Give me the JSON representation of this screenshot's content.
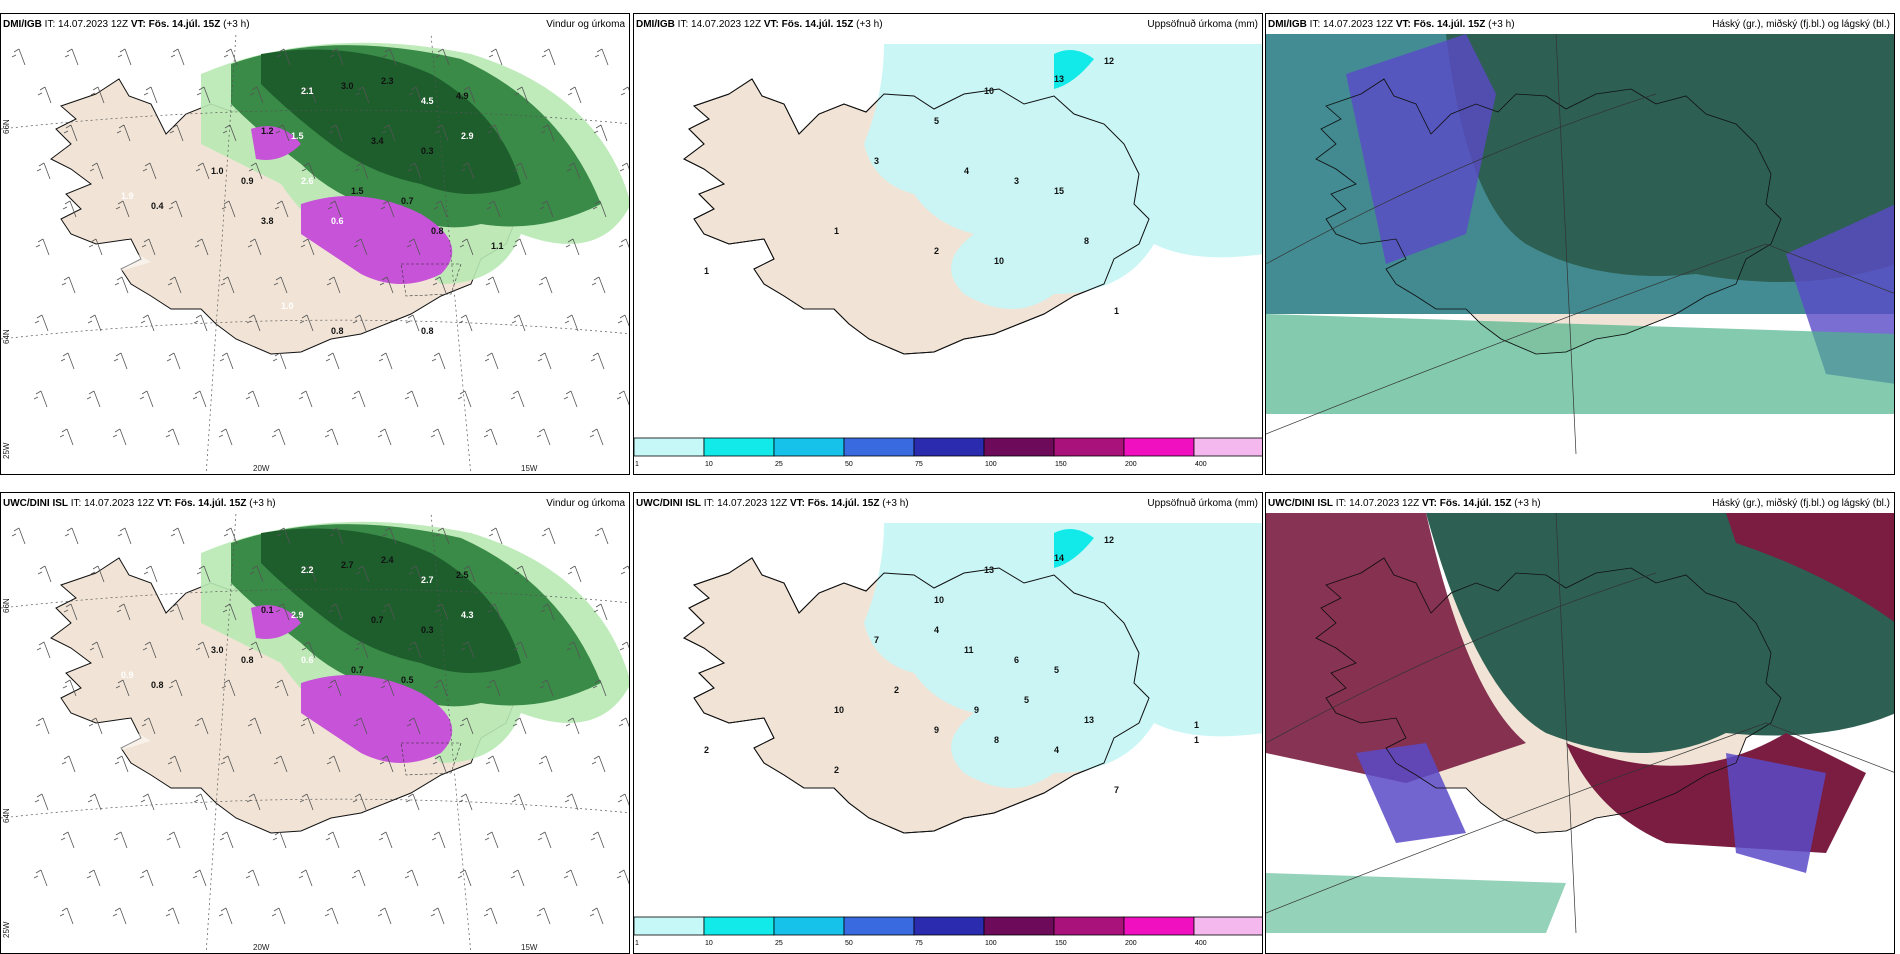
{
  "panels": [
    {
      "model": "DMI/IGB",
      "it_label": "IT:",
      "it": "14.07.2023 12Z",
      "vt_label": "VT:",
      "vt": "Fös. 14.júl. 15Z",
      "lead": "(+3 h)",
      "title": "Vindur og úrkoma"
    },
    {
      "model": "DMI/IGB",
      "it_label": "IT:",
      "it": "14.07.2023 12Z",
      "vt_label": "VT:",
      "vt": "Fös. 14.júl. 15Z",
      "lead": "(+3 h)",
      "title": "Uppsöfnuð úrkoma (mm)"
    },
    {
      "model": "DMI/IGB",
      "it_label": "IT:",
      "it": "14.07.2023 12Z",
      "vt_label": "VT:",
      "vt": "Fös. 14.júl. 15Z",
      "lead": "(+3 h)",
      "title": "Háský (gr.), miðský (fj.bl.) og lágský (bl.)"
    },
    {
      "model": "UWC/DINI ISL",
      "it_label": "IT:",
      "it": "14.07.2023 12Z",
      "vt_label": "VT:",
      "vt": "Fös. 14.júl. 15Z",
      "lead": "(+3 h)",
      "title": "Vindur og úrkoma"
    },
    {
      "model": "UWC/DINI ISL",
      "it_label": "IT:",
      "it": "14.07.2023 12Z",
      "vt_label": "VT:",
      "vt": "Fös. 14.júl. 15Z",
      "lead": "(+3 h)",
      "title": "Uppsöfnuð úrkoma (mm)"
    },
    {
      "model": "UWC/DINI ISL",
      "it_label": "IT:",
      "it": "14.07.2023 12Z",
      "vt_label": "VT:",
      "vt": "Fös. 14.júl. 15Z",
      "lead": "(+3 h)",
      "title": "Háský (gr.), miðský (fj.bl.) og lágský (bl.)"
    }
  ],
  "grid_labels": {
    "lon_20": "20W",
    "lon_15": "15W",
    "lat_66": "66N",
    "lat_64": "64N",
    "lat_25": "25W"
  },
  "colorbar": {
    "ticks": [
      "1",
      "10",
      "25",
      "50",
      "75",
      "100",
      "150",
      "200",
      "400"
    ],
    "colors": [
      "#c6f8f8",
      "#12eaea",
      "#17c2ea",
      "#3a6ae0",
      "#2b2bb0",
      "#6e0a5a",
      "#a8127a",
      "#f010c0",
      "#f4b8ee"
    ]
  },
  "wind_values_top": [
    "2.1",
    "3.0",
    "2.3",
    "4.5",
    "4.9",
    "1.2",
    "1.5",
    "3.4",
    "0.3",
    "2.9",
    "1.0",
    "0.9",
    "2.6",
    "1.5",
    "0.7",
    "1.9",
    "0.4",
    "3.8",
    "0.6",
    "0.8",
    "1.1",
    "1.0",
    "0.8",
    "0.8",
    "0.7"
  ],
  "wind_values_bottom": [
    "2.2",
    "2.7",
    "2.4",
    "2.7",
    "2.5",
    "0.1",
    "2.9",
    "0.7",
    "0.3",
    "4.3",
    "3.0",
    "0.8",
    "0.6",
    "0.7",
    "0.5",
    "0.9",
    "0.8"
  ],
  "precip_values_top": [
    "13",
    "12",
    "10",
    "5",
    "3",
    "4",
    "3",
    "15",
    "1",
    "2",
    "10",
    "8",
    "1",
    "1"
  ],
  "precip_values_bottom": [
    "14",
    "12",
    "13",
    "10",
    "7",
    "11",
    "6",
    "5",
    "10",
    "9",
    "8",
    "13",
    "2",
    "7",
    "4",
    "2",
    "5",
    "9",
    "1",
    "1",
    "4",
    "2"
  ],
  "colors": {
    "land": "#f1e4d6",
    "sea": "#ffffff",
    "precip_light": "#c7f6f6",
    "green_dark": "#1d5e2c",
    "green_mid": "#3a8a48",
    "green_light": "#b8e9b4",
    "purple": "#c653d8",
    "cloud_teal": "#2f7f88",
    "cloud_darkgreen": "#2d5f52",
    "cloud_purple": "#5a4ac8",
    "cloud_maroon": "#7a1d40",
    "cloud_green": "#4fb48c"
  }
}
